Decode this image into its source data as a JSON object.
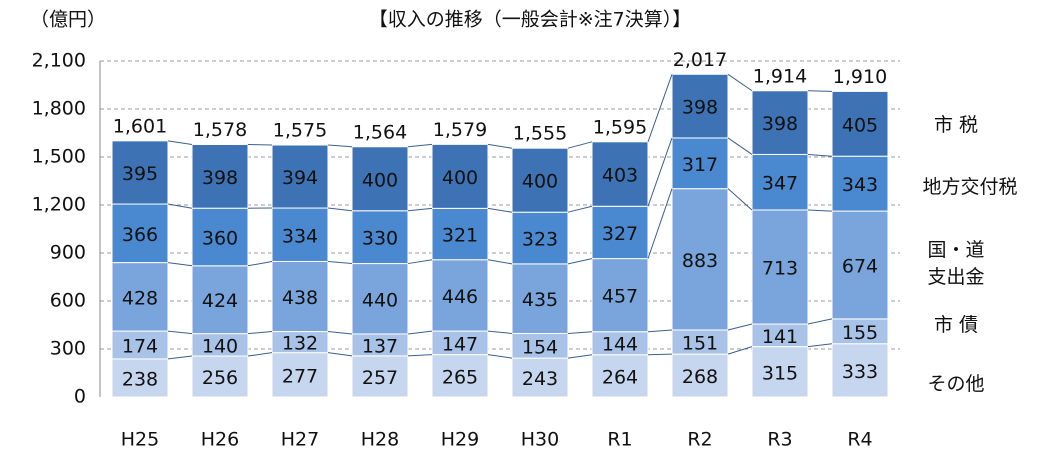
{
  "chart_data": {
    "type": "bar",
    "stacked": true,
    "title": "【収入の推移（一般会計※注7決算）】",
    "y_label": "（億円）",
    "categories": [
      "H25",
      "H26",
      "H27",
      "H28",
      "H29",
      "H30",
      "R1",
      "R2",
      "R3",
      "R4"
    ],
    "series": [
      {
        "name": "その他",
        "color": "#c6d6ef",
        "values": [
          238,
          256,
          277,
          257,
          265,
          243,
          264,
          268,
          315,
          333
        ]
      },
      {
        "name": "市 債",
        "color": "#a9c2e7",
        "values": [
          174,
          140,
          132,
          137,
          147,
          154,
          144,
          151,
          141,
          155
        ]
      },
      {
        "name": "国・道支出金",
        "color": "#79a5dc",
        "values": [
          428,
          424,
          438,
          440,
          446,
          435,
          457,
          883,
          713,
          674
        ]
      },
      {
        "name": "地方交付税",
        "color": "#4a88d0",
        "values": [
          366,
          360,
          334,
          330,
          321,
          323,
          327,
          317,
          347,
          343
        ]
      },
      {
        "name": "市 税",
        "color": "#3d73b5",
        "values": [
          395,
          398,
          394,
          400,
          400,
          400,
          403,
          398,
          398,
          405
        ]
      }
    ],
    "totals": {
      "values": [
        1601,
        1578,
        1575,
        1564,
        1579,
        1555,
        1595,
        2017,
        1914,
        1910
      ],
      "value_labels": [
        "1,601",
        "1,578",
        "1,575",
        "1,564",
        "1,579",
        "1,555",
        "1,595",
        "2,017",
        "1,914",
        "1,910"
      ]
    },
    "ylim": [
      0,
      2100
    ],
    "yticks": [
      0,
      300,
      600,
      900,
      {
        "value": 1200,
        "label": "1,200"
      },
      {
        "value": 1500,
        "label": "1,500"
      },
      {
        "value": 1800,
        "label": "1,800"
      },
      {
        "value": 2100,
        "label": "2,100"
      }
    ],
    "grid": true
  }
}
